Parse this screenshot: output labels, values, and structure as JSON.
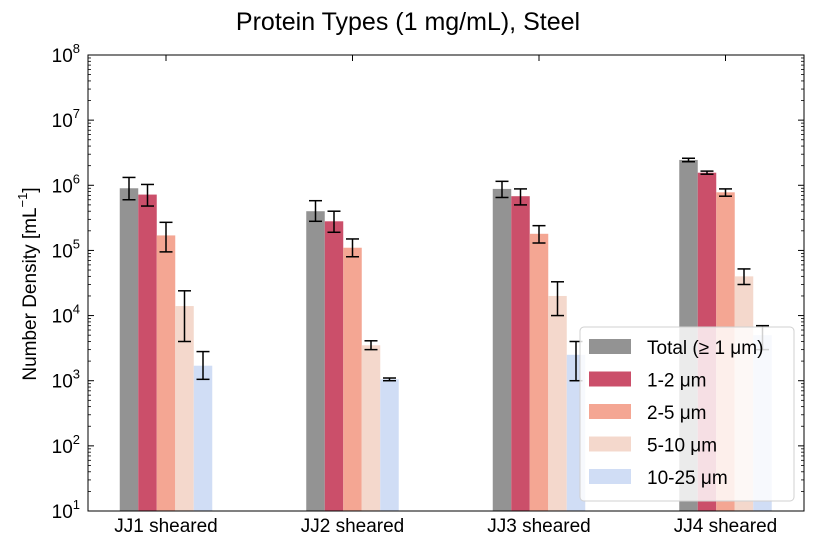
{
  "chart_data": {
    "type": "bar",
    "title": "Protein Types (1 mg/mL), Steel",
    "xlabel": "",
    "ylabel": "Number Density [mL⁻¹]",
    "ylabel_main": "Number Density [mL",
    "ylabel_sup": "−1",
    "ylabel_end": "]",
    "yscale": "log",
    "ylim": [
      10,
      100000000
    ],
    "y_tick_exponents": [
      "1",
      "2",
      "3",
      "4",
      "5",
      "6",
      "7",
      "8"
    ],
    "y_tick_base": "10",
    "legend_position": "lower-right",
    "grid": false,
    "categories": [
      "JJ1 sheared",
      "JJ2 sheared",
      "JJ3 sheared",
      "JJ4 sheared"
    ],
    "series": [
      {
        "name": "Total (≥  1 μm)",
        "color": "#939393",
        "values": [
          900000,
          400000,
          880000,
          2450000
        ],
        "errors": [
          [
            600000,
            1320000
          ],
          [
            280000,
            580000
          ],
          [
            650000,
            1150000
          ],
          [
            2300000,
            2600000
          ]
        ]
      },
      {
        "name": "1-2 μm",
        "color": "#cb4f6a",
        "values": [
          720000,
          280000,
          680000,
          1560000
        ],
        "errors": [
          [
            480000,
            1030000
          ],
          [
            190000,
            400000
          ],
          [
            500000,
            880000
          ],
          [
            1480000,
            1650000
          ]
        ]
      },
      {
        "name": "2-5 μm",
        "color": "#f4a693",
        "values": [
          170000,
          110000,
          180000,
          780000
        ],
        "errors": [
          [
            95000,
            270000
          ],
          [
            80000,
            150000
          ],
          [
            130000,
            240000
          ],
          [
            680000,
            880000
          ]
        ]
      },
      {
        "name": "5-10 μm",
        "color": "#f4d8cc",
        "values": [
          14000,
          3500,
          20000,
          40000
        ],
        "errors": [
          [
            4000,
            24000
          ],
          [
            3000,
            4100
          ],
          [
            10000,
            33000
          ],
          [
            30000,
            52000
          ]
        ]
      },
      {
        "name": "10-25 μm",
        "color": "#d0ddf5",
        "values": [
          1700,
          1050,
          2500,
          5000
        ],
        "errors": [
          [
            1050,
            2800
          ],
          [
            1000,
            1100
          ],
          [
            1000,
            4000
          ],
          [
            3000,
            7000
          ]
        ]
      }
    ]
  }
}
